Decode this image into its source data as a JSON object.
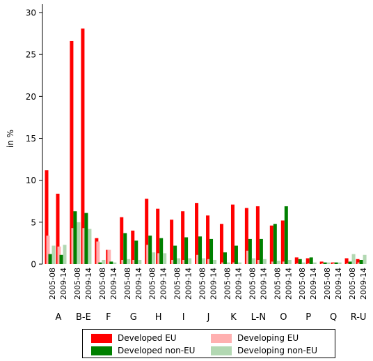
{
  "chart_data": {
    "type": "bar",
    "ylabel": "in %",
    "ylim": [
      0,
      31
    ],
    "yticks": [
      0,
      5,
      10,
      15,
      20,
      25,
      30
    ],
    "grid": false,
    "legend_position": "bottom",
    "groups": [
      {
        "label": "A",
        "periods": [
          "2005-08",
          "2009-14"
        ]
      },
      {
        "label": "B-E",
        "periods": [
          "2005-08",
          "2009-14"
        ]
      },
      {
        "label": "F",
        "periods": [
          "2005-08",
          "2009-14"
        ]
      },
      {
        "label": "G",
        "periods": [
          "2005-08",
          "2009-14"
        ]
      },
      {
        "label": "H",
        "periods": [
          "2005-08",
          "2009-14"
        ]
      },
      {
        "label": "I",
        "periods": [
          "2005-08",
          "2009-14"
        ]
      },
      {
        "label": "J",
        "periods": [
          "2005-08",
          "2009-14"
        ]
      },
      {
        "label": "K",
        "periods": [
          "2005-08",
          "2009-14"
        ]
      },
      {
        "label": "L-N",
        "periods": [
          "2005-08",
          "2009-14"
        ]
      },
      {
        "label": "O",
        "periods": [
          "2005-08",
          "2009-14"
        ]
      },
      {
        "label": "P",
        "periods": [
          "2005-08",
          "2009-14"
        ]
      },
      {
        "label": "Q",
        "periods": [
          "2005-08",
          "2009-14"
        ]
      },
      {
        "label": "R-U",
        "periods": [
          "2005-08",
          "2009-14"
        ]
      }
    ],
    "series": [
      {
        "name": "Developed EU",
        "color": "#ff0000",
        "values": [
          11.2,
          8.4,
          26.6,
          28.1,
          3.1,
          1.7,
          5.6,
          4.0,
          7.8,
          6.6,
          5.3,
          6.3,
          7.3,
          5.8,
          4.8,
          7.1,
          6.7,
          6.9,
          4.6,
          5.2,
          0.8,
          0.7,
          0.3,
          0.2,
          0.7,
          0.6
        ]
      },
      {
        "name": "Developing EU",
        "color": "#ffb0b0",
        "values": [
          3.4,
          2.1,
          4.3,
          4.3,
          2.7,
          1.7,
          0.5,
          0.5,
          2.3,
          1.3,
          0.5,
          0.5,
          1.1,
          0.6,
          0.2,
          0.2,
          1.6,
          0.5,
          0.3,
          0.3,
          0.1,
          0.1,
          0.1,
          0.1,
          0.1,
          0.2
        ]
      },
      {
        "name": "Developed non-EU",
        "color": "#008000",
        "values": [
          1.2,
          1.1,
          6.3,
          6.1,
          0.2,
          0.3,
          3.7,
          2.8,
          3.4,
          3.1,
          2.2,
          3.2,
          3.3,
          3.0,
          1.4,
          2.2,
          3.0,
          3.0,
          4.8,
          6.9,
          0.6,
          0.8,
          0.2,
          0.2,
          0.3,
          0.5
        ]
      },
      {
        "name": "Developing non-EU",
        "color": "#b2d8b2",
        "values": [
          2.2,
          2.3,
          5.0,
          4.2,
          0.5,
          0.2,
          0.6,
          0.5,
          1.4,
          1.3,
          0.7,
          0.7,
          0.7,
          0.5,
          0.2,
          0.2,
          0.7,
          0.6,
          0.4,
          0.5,
          0.2,
          0.2,
          0.2,
          0.2,
          1.2,
          1.1
        ]
      }
    ]
  }
}
